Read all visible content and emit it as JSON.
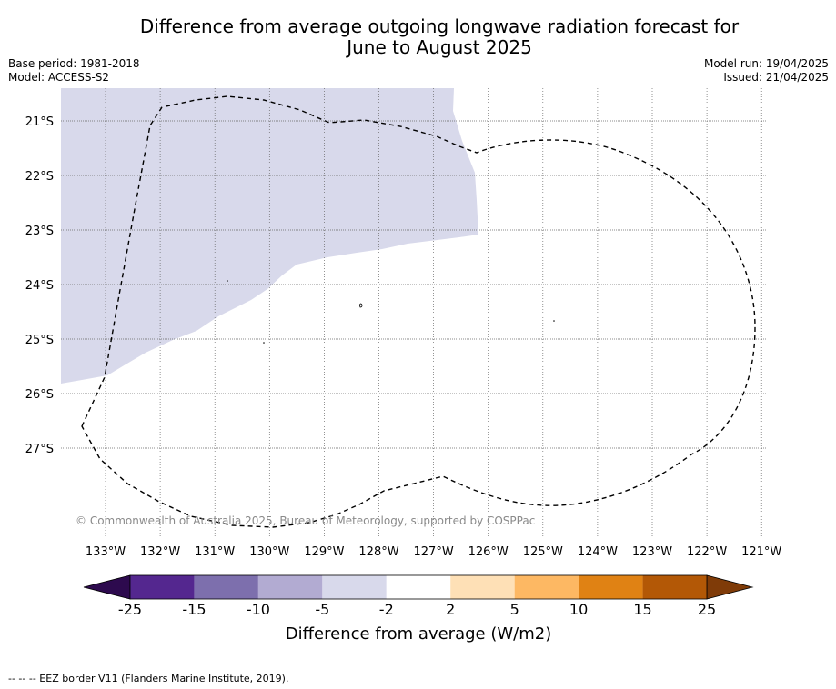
{
  "title_line1": "Difference from average outgoing longwave radiation forecast for",
  "title_line2": "June to August 2025",
  "base_period": "Base period: 1981-2018",
  "model": "Model: ACCESS-S2",
  "model_run": "Model run: 19/04/2025",
  "issued": "Issued: 21/04/2025",
  "copyright": "© Commonwealth of Australia 2025, Bureau of Meteorology, supported by COSPPac",
  "footer": "--  --  -- EEZ border V11 (Flanders Marine Institute, 2019).",
  "map": {
    "lon_labels": [
      "133°W",
      "132°W",
      "131°W",
      "130°W",
      "129°W",
      "128°W",
      "127°W",
      "126°W",
      "125°W",
      "124°W",
      "123°W",
      "122°W",
      "121°W"
    ],
    "lat_labels": [
      "21°S",
      "22°S",
      "23°S",
      "24°S",
      "25°S",
      "26°S",
      "27°S"
    ],
    "gridlines": true,
    "eez_border": "dashed"
  },
  "colorbar": {
    "title": "Difference from average (W/m2)",
    "tick_labels": [
      "-25",
      "-15",
      "-10",
      "-5",
      "-2",
      "2",
      "5",
      "10",
      "15",
      "25"
    ],
    "colors": {
      "under": "#2d0a4e",
      "bins": [
        "#54278f",
        "#7d6fad",
        "#b2abd2",
        "#d8d9eb",
        "#ffffff",
        "#fee0b6",
        "#fdb863",
        "#e08214",
        "#b35806"
      ],
      "over": "#7f3b08"
    }
  },
  "shaded_region": {
    "category": "-5 to -2",
    "color": "#d8d9eb"
  }
}
